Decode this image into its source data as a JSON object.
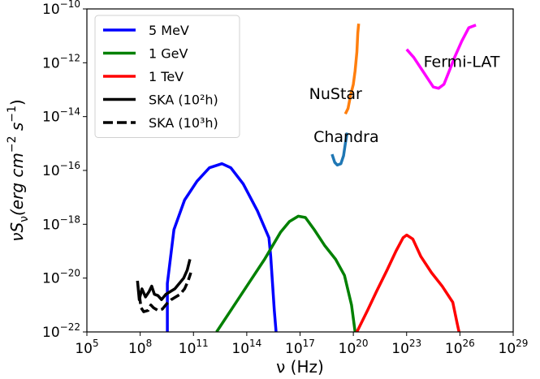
{
  "chart_data": {
    "type": "line",
    "xlabel": "ν (Hz)",
    "ylabel": "νS_ν(erg cm^-2 s^-1)",
    "x_scale": "log",
    "y_scale": "log",
    "xlim": [
      100000.0,
      1e+29
    ],
    "ylim": [
      1e-22,
      1e-10
    ],
    "x_ticks": [
      {
        "value": 5,
        "label_base": "10",
        "label_exp": "5"
      },
      {
        "value": 8,
        "label_base": "10",
        "label_exp": "8"
      },
      {
        "value": 11,
        "label_base": "10",
        "label_exp": "11"
      },
      {
        "value": 14,
        "label_base": "10",
        "label_exp": "14"
      },
      {
        "value": 17,
        "label_base": "10",
        "label_exp": "17"
      },
      {
        "value": 20,
        "label_base": "10",
        "label_exp": "20"
      },
      {
        "value": 23,
        "label_base": "10",
        "label_exp": "23"
      },
      {
        "value": 26,
        "label_base": "10",
        "label_exp": "26"
      },
      {
        "value": 29,
        "label_base": "10",
        "label_exp": "29"
      }
    ],
    "y_ticks": [
      {
        "value": -22,
        "label_base": "10",
        "label_exp": "−22"
      },
      {
        "value": -20,
        "label_base": "10",
        "label_exp": "−20"
      },
      {
        "value": -18,
        "label_base": "10",
        "label_exp": "−18"
      },
      {
        "value": -16,
        "label_base": "10",
        "label_exp": "−16"
      },
      {
        "value": -14,
        "label_base": "10",
        "label_exp": "−14"
      },
      {
        "value": -12,
        "label_base": "10",
        "label_exp": "−12"
      },
      {
        "value": -10,
        "label_base": "10",
        "label_exp": "−10"
      }
    ],
    "grid": false,
    "legend_position": "top-left",
    "series": [
      {
        "name": "5 MeV",
        "color": "#0000ff",
        "style": "solid",
        "width": 3.5,
        "log_points": [
          [
            9.53,
            -22
          ],
          [
            9.53,
            -21.6
          ],
          [
            9.53,
            -20.2
          ],
          [
            9.9,
            -18.2
          ],
          [
            10.5,
            -17.1
          ],
          [
            11.2,
            -16.4
          ],
          [
            11.9,
            -15.9
          ],
          [
            12.6,
            -15.75
          ],
          [
            13.1,
            -15.9
          ],
          [
            13.8,
            -16.5
          ],
          [
            14.6,
            -17.5
          ],
          [
            15.25,
            -18.5
          ],
          [
            15.35,
            -19.2
          ],
          [
            15.55,
            -21.2
          ],
          [
            15.65,
            -22
          ]
        ]
      },
      {
        "name": "1 GeV",
        "color": "#008000",
        "style": "solid",
        "width": 3.5,
        "log_points": [
          [
            12.3,
            -22
          ],
          [
            13.2,
            -21.1
          ],
          [
            14.1,
            -20.2
          ],
          [
            15.0,
            -19.3
          ],
          [
            15.9,
            -18.3
          ],
          [
            16.4,
            -17.9
          ],
          [
            16.9,
            -17.7
          ],
          [
            17.3,
            -17.75
          ],
          [
            17.8,
            -18.2
          ],
          [
            18.4,
            -18.8
          ],
          [
            19.0,
            -19.3
          ],
          [
            19.5,
            -19.9
          ],
          [
            19.9,
            -21.0
          ],
          [
            20.1,
            -22
          ]
        ]
      },
      {
        "name": "1 TeV",
        "color": "#ff0000",
        "style": "solid",
        "width": 3.5,
        "log_points": [
          [
            20.2,
            -22
          ],
          [
            20.8,
            -21.2
          ],
          [
            21.3,
            -20.5
          ],
          [
            21.9,
            -19.7
          ],
          [
            22.4,
            -19.0
          ],
          [
            22.8,
            -18.5
          ],
          [
            23.0,
            -18.4
          ],
          [
            23.35,
            -18.55
          ],
          [
            23.8,
            -19.2
          ],
          [
            24.4,
            -19.8
          ],
          [
            25.0,
            -20.3
          ],
          [
            25.6,
            -20.9
          ],
          [
            25.85,
            -21.7
          ],
          [
            25.95,
            -22
          ]
        ]
      },
      {
        "name": "SKA (10²h)",
        "color": "#000000",
        "style": "solid",
        "width": 3.5,
        "log_points": [
          [
            7.85,
            -20.1
          ],
          [
            7.95,
            -20.8
          ],
          [
            8.1,
            -20.4
          ],
          [
            8.3,
            -20.7
          ],
          [
            8.5,
            -20.5
          ],
          [
            8.65,
            -20.3
          ],
          [
            8.8,
            -20.6
          ],
          [
            9.0,
            -20.65
          ],
          [
            9.2,
            -20.8
          ],
          [
            9.45,
            -20.6
          ],
          [
            9.7,
            -20.5
          ],
          [
            9.95,
            -20.4
          ],
          [
            10.2,
            -20.2
          ],
          [
            10.45,
            -20.0
          ],
          [
            10.65,
            -19.7
          ],
          [
            10.8,
            -19.3
          ]
        ]
      },
      {
        "name": "SKA (10³h)",
        "color": "#000000",
        "style": "dashed",
        "width": 3.5,
        "log_points": [
          [
            7.95,
            -20.6
          ],
          [
            8.05,
            -21.1
          ],
          [
            8.2,
            -21.25
          ],
          [
            8.45,
            -21.2
          ],
          [
            8.6,
            -21.0
          ],
          [
            8.75,
            -21.1
          ],
          [
            9.0,
            -21.2
          ],
          [
            9.25,
            -21.15
          ],
          [
            9.5,
            -20.95
          ],
          [
            9.75,
            -20.8
          ],
          [
            10.0,
            -20.7
          ],
          [
            10.25,
            -20.6
          ],
          [
            10.5,
            -20.4
          ],
          [
            10.7,
            -20.1
          ],
          [
            10.85,
            -19.8
          ]
        ]
      },
      {
        "name": "Chandra",
        "color": "#1f77b4",
        "style": "solid",
        "width": 3.5,
        "log_points": [
          [
            18.8,
            -15.4
          ],
          [
            18.95,
            -15.7
          ],
          [
            19.1,
            -15.8
          ],
          [
            19.3,
            -15.75
          ],
          [
            19.45,
            -15.45
          ],
          [
            19.55,
            -15.0
          ],
          [
            19.65,
            -14.6
          ]
        ]
      },
      {
        "name": "NuStar",
        "color": "#ff7f0e",
        "style": "solid",
        "width": 3.5,
        "log_points": [
          [
            19.55,
            -13.9
          ],
          [
            19.7,
            -13.7
          ],
          [
            19.85,
            -13.2
          ],
          [
            20.0,
            -12.8
          ],
          [
            20.1,
            -12.3
          ],
          [
            20.2,
            -11.6
          ],
          [
            20.25,
            -10.9
          ],
          [
            20.3,
            -10.55
          ]
        ]
      },
      {
        "name": "Fermi-LAT",
        "color": "#ff00ff",
        "style": "solid",
        "width": 3.5,
        "log_points": [
          [
            23.0,
            -11.5
          ],
          [
            23.4,
            -11.8
          ],
          [
            23.8,
            -12.2
          ],
          [
            24.2,
            -12.6
          ],
          [
            24.5,
            -12.9
          ],
          [
            24.8,
            -12.95
          ],
          [
            25.1,
            -12.8
          ],
          [
            25.4,
            -12.3
          ],
          [
            25.7,
            -11.8
          ],
          [
            26.1,
            -11.2
          ],
          [
            26.5,
            -10.7
          ],
          [
            26.9,
            -10.6
          ]
        ]
      }
    ],
    "annotations": [
      {
        "text": "NuStar",
        "log_x": 19.0,
        "log_y": -13.35
      },
      {
        "text": "Chandra",
        "log_x": 19.6,
        "log_y": -14.95
      },
      {
        "text": "Fermi-LAT",
        "log_x": 26.1,
        "log_y": -12.15
      }
    ]
  }
}
